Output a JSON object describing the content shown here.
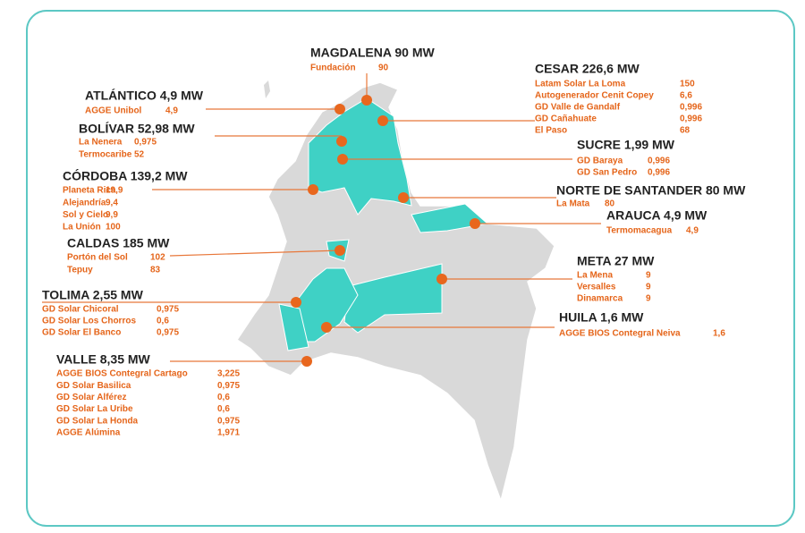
{
  "regions": [
    {
      "title": "MAGDALENA 90 MW",
      "projects": [
        {
          "name": "Fundación",
          "value": "90"
        }
      ]
    },
    {
      "title": "ATLÁNTICO 4,9 MW",
      "projects": [
        {
          "name": "AGGE Unibol",
          "value": "4,9"
        }
      ]
    },
    {
      "title": "BOLÍVAR 52,98 MW",
      "projects": [
        {
          "name": "La Nenera",
          "value": "0,975"
        },
        {
          "name": "Termocaribe",
          "value": "52"
        }
      ]
    },
    {
      "title": "CÓRDOBA 139,2 MW",
      "projects": [
        {
          "name": "Planeta Rica",
          "value": "19,9"
        },
        {
          "name": "Alejandría",
          "value": "9,4"
        },
        {
          "name": "Sol y Cielo",
          "value": "9,9"
        },
        {
          "name": "La Unión",
          "value": "100"
        }
      ]
    },
    {
      "title": "CALDAS 185 MW",
      "projects": [
        {
          "name": "Portón del Sol",
          "value": "102"
        },
        {
          "name": "Tepuy",
          "value": "83"
        }
      ]
    },
    {
      "title": "TOLIMA 2,55 MW",
      "projects": [
        {
          "name": "GD Solar Chicoral",
          "value": "0,975"
        },
        {
          "name": "GD Solar Los Chorros",
          "value": "0,6"
        },
        {
          "name": "GD Solar El Banco",
          "value": "0,975"
        }
      ]
    },
    {
      "title": "VALLE 8,35 MW",
      "projects": [
        {
          "name": "AGGE BIOS Contegral Cartago",
          "value": "3,225"
        },
        {
          "name": "GD Solar Basilica",
          "value": "0,975"
        },
        {
          "name": "GD Solar Alférez",
          "value": "0,6"
        },
        {
          "name": "GD Solar La Uribe",
          "value": "0,6"
        },
        {
          "name": "GD Solar La Honda",
          "value": "0,975"
        },
        {
          "name": "AGGE Alúmina",
          "value": "1,971"
        }
      ]
    },
    {
      "title": "CESAR 226,6 MW",
      "projects": [
        {
          "name": "Latam Solar La Loma",
          "value": "150"
        },
        {
          "name": "Autogenerador Cenit Copey",
          "value": "6,6"
        },
        {
          "name": "GD Valle de Gandalf",
          "value": "0,996"
        },
        {
          "name": "GD Cañahuate",
          "value": "0,996"
        },
        {
          "name": "El Paso",
          "value": "68"
        }
      ]
    },
    {
      "title": "SUCRE 1,99 MW",
      "projects": [
        {
          "name": "GD Baraya",
          "value": "0,996"
        },
        {
          "name": "GD San Pedro",
          "value": "0,996"
        }
      ]
    },
    {
      "title": "NORTE DE SANTANDER 80 MW",
      "projects": [
        {
          "name": "La Mata",
          "value": "80"
        }
      ]
    },
    {
      "title": "ARAUCA 4,9 MW",
      "projects": [
        {
          "name": "Termomacagua",
          "value": "4,9"
        }
      ]
    },
    {
      "title": "META 27 MW",
      "projects": [
        {
          "name": "La Mena",
          "value": "9"
        },
        {
          "name": "Versalles",
          "value": "9"
        },
        {
          "name": "Dinamarca",
          "value": "9"
        }
      ]
    },
    {
      "title": "HUILA 1,6 MW",
      "projects": [
        {
          "name": "AGGE BIOS Contegral Neiva",
          "value": "1,6"
        }
      ]
    }
  ]
}
